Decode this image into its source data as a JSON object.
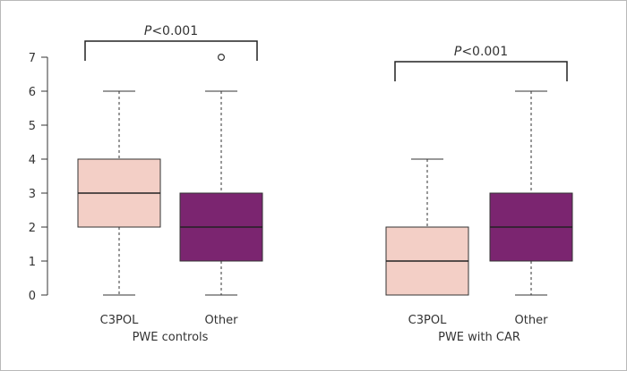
{
  "chart_data": {
    "type": "box",
    "ylim": [
      0,
      7
    ],
    "yticks": [
      0,
      1,
      2,
      3,
      4,
      5,
      6,
      7
    ],
    "groups": [
      {
        "label": "PWE controls",
        "significance": {
          "italic": "P",
          "rest": "<0.001"
        },
        "boxes": [
          {
            "label": "C3POL",
            "color": "#f3cfc6",
            "min": 0,
            "q1": 2,
            "median": 3,
            "q3": 4,
            "max": 6,
            "outliers": []
          },
          {
            "label": "Other",
            "color": "#7b2570",
            "min": 0,
            "q1": 1,
            "median": 2,
            "q3": 3,
            "max": 6,
            "outliers": [
              7
            ]
          }
        ]
      },
      {
        "label": "PWE with CAR",
        "significance": {
          "italic": "P",
          "rest": "<0.001"
        },
        "boxes": [
          {
            "label": "C3POL",
            "color": "#f3cfc6",
            "min": 0,
            "q1": 0,
            "median": 1,
            "q3": 2,
            "max": 4,
            "outliers": []
          },
          {
            "label": "Other",
            "color": "#7b2570",
            "min": 0,
            "q1": 1,
            "median": 2,
            "q3": 3,
            "max": 6,
            "outliers": []
          }
        ]
      }
    ]
  }
}
